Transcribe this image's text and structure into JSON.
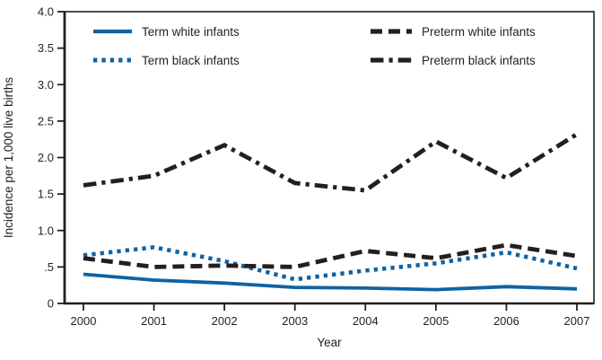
{
  "figure": {
    "background": "#ffffff"
  },
  "chart_data": {
    "type": "line",
    "title": "",
    "xlabel": "Year",
    "ylabel": "Incidence per 1,000 live births",
    "x": [
      2000,
      2001,
      2002,
      2003,
      2004,
      2005,
      2006,
      2007
    ],
    "x_tick_labels": [
      "2000",
      "2001",
      "2002",
      "2003",
      "2004",
      "2005",
      "2006",
      "2007"
    ],
    "y_tick_values": [
      4.0,
      3.5,
      3.0,
      2.5,
      2.0,
      1.5,
      1.0,
      0.5,
      0
    ],
    "y_tick_labels": [
      "4.0",
      "3.5",
      "3.0",
      "2.5",
      "2.0",
      "1.5",
      "1.0",
      ".5",
      "0"
    ],
    "ylim": [
      0,
      4.0
    ],
    "grid": false,
    "legend_position": "inside-top, two columns",
    "series": [
      {
        "name": "Term white infants",
        "key": "term-white-infants",
        "color": "#0d63a5",
        "style": "solid",
        "values": [
          0.4,
          0.32,
          0.28,
          0.22,
          0.21,
          0.19,
          0.23,
          0.2
        ]
      },
      {
        "name": "Term black infants",
        "key": "term-black-infants",
        "color": "#0d63a5",
        "style": "dotted",
        "values": [
          0.66,
          0.77,
          0.58,
          0.33,
          0.45,
          0.55,
          0.7,
          0.48
        ]
      },
      {
        "name": "Preterm white infants",
        "key": "preterm-white-infants",
        "color": "#231f20",
        "style": "dashed",
        "values": [
          0.62,
          0.5,
          0.52,
          0.5,
          0.72,
          0.62,
          0.8,
          0.65
        ]
      },
      {
        "name": "Preterm black infants",
        "key": "preterm-black-infants",
        "color": "#231f20",
        "style": "dashdot",
        "values": [
          1.62,
          1.75,
          2.17,
          1.65,
          1.55,
          2.22,
          1.72,
          2.32
        ]
      }
    ],
    "colors": {
      "blue": "#0d63a5",
      "black": "#231f20"
    }
  }
}
